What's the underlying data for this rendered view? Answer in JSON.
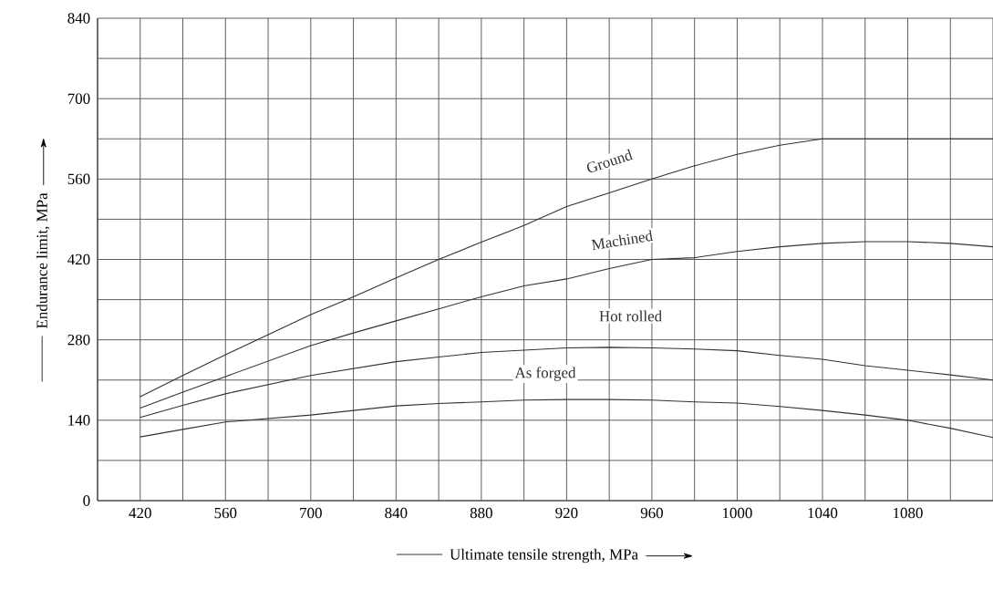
{
  "chart_data": {
    "type": "line",
    "xlabel": "Ultimate tensile strength, MPa",
    "ylabel": "Endurance limit, MPa",
    "categories": [
      null,
      "420",
      null,
      "560",
      null,
      "700",
      null,
      "840",
      null,
      "880",
      null,
      "920",
      null,
      "960",
      null,
      "1000",
      null,
      "1040",
      null,
      "1080",
      null,
      null
    ],
    "ylim": [
      0,
      840
    ],
    "yticks": [
      0,
      140,
      280,
      420,
      560,
      700,
      840
    ],
    "grid": true,
    "line_style": "solid",
    "series": [
      {
        "name": "Ground",
        "color": "#333333",
        "values": [
          null,
          181,
          218,
          254,
          289,
          324,
          355,
          388,
          420,
          450,
          479,
          512,
          536,
          560,
          583,
          603,
          619,
          630,
          630,
          630,
          630,
          630
        ]
      },
      {
        "name": "Machined",
        "color": "#333333",
        "values": [
          null,
          161,
          189,
          216,
          243,
          270,
          292,
          313,
          334,
          355,
          374,
          386,
          404,
          420,
          423,
          434,
          442,
          448,
          451,
          451,
          448,
          442
        ]
      },
      {
        "name": "Hot rolled",
        "color": "#333333",
        "values": [
          null,
          145,
          166,
          186,
          202,
          218,
          230,
          242,
          250,
          258,
          262,
          266,
          267,
          266,
          264,
          261,
          253,
          246,
          235,
          227,
          219,
          210
        ]
      },
      {
        "name": "As forged",
        "color": "#333333",
        "values": [
          null,
          111,
          124,
          137,
          143,
          149,
          157,
          165,
          169,
          172,
          175,
          176,
          176,
          175,
          172,
          170,
          164,
          157,
          149,
          140,
          126,
          110
        ]
      }
    ]
  }
}
